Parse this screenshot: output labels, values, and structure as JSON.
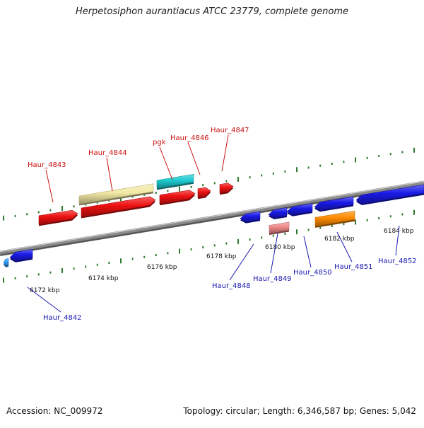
{
  "title": "Herpetosiphon aurantiacus ATCC 23779, complete genome",
  "footer": {
    "accession": "Accession: NC_009972",
    "summary": "Topology: circular; Length: 6,346,587 bp; Genes: 5,042"
  },
  "colors": {
    "backbone": "#8a8a8a",
    "tick": "#2f7a2f",
    "label_upper": "#cc1111",
    "label_lower": "#1a1ab0",
    "red": "#ee1111",
    "yellow": "#f2e9a4",
    "cyan": "#1ccad0",
    "blue": "#1a1ae8",
    "salmon": "#f08a8a",
    "orange": "#ff8c00",
    "lightblue": "#33a3ff"
  },
  "scale_labels": [
    "6172 kbp",
    "6174 kbp",
    "6176 kbp",
    "6178 kbp",
    "6180 kbp",
    "6182 kbp",
    "6184 kbp"
  ],
  "upper_gene_labels": [
    "Haur_4843",
    "Haur_4844",
    "pgk",
    "Haur_4846",
    "Haur_4847"
  ],
  "lower_gene_labels": [
    "Haur_4842",
    "Haur_4848",
    "Haur_4849",
    "Haur_4850",
    "Haur_4851",
    "Haur_4852"
  ]
}
